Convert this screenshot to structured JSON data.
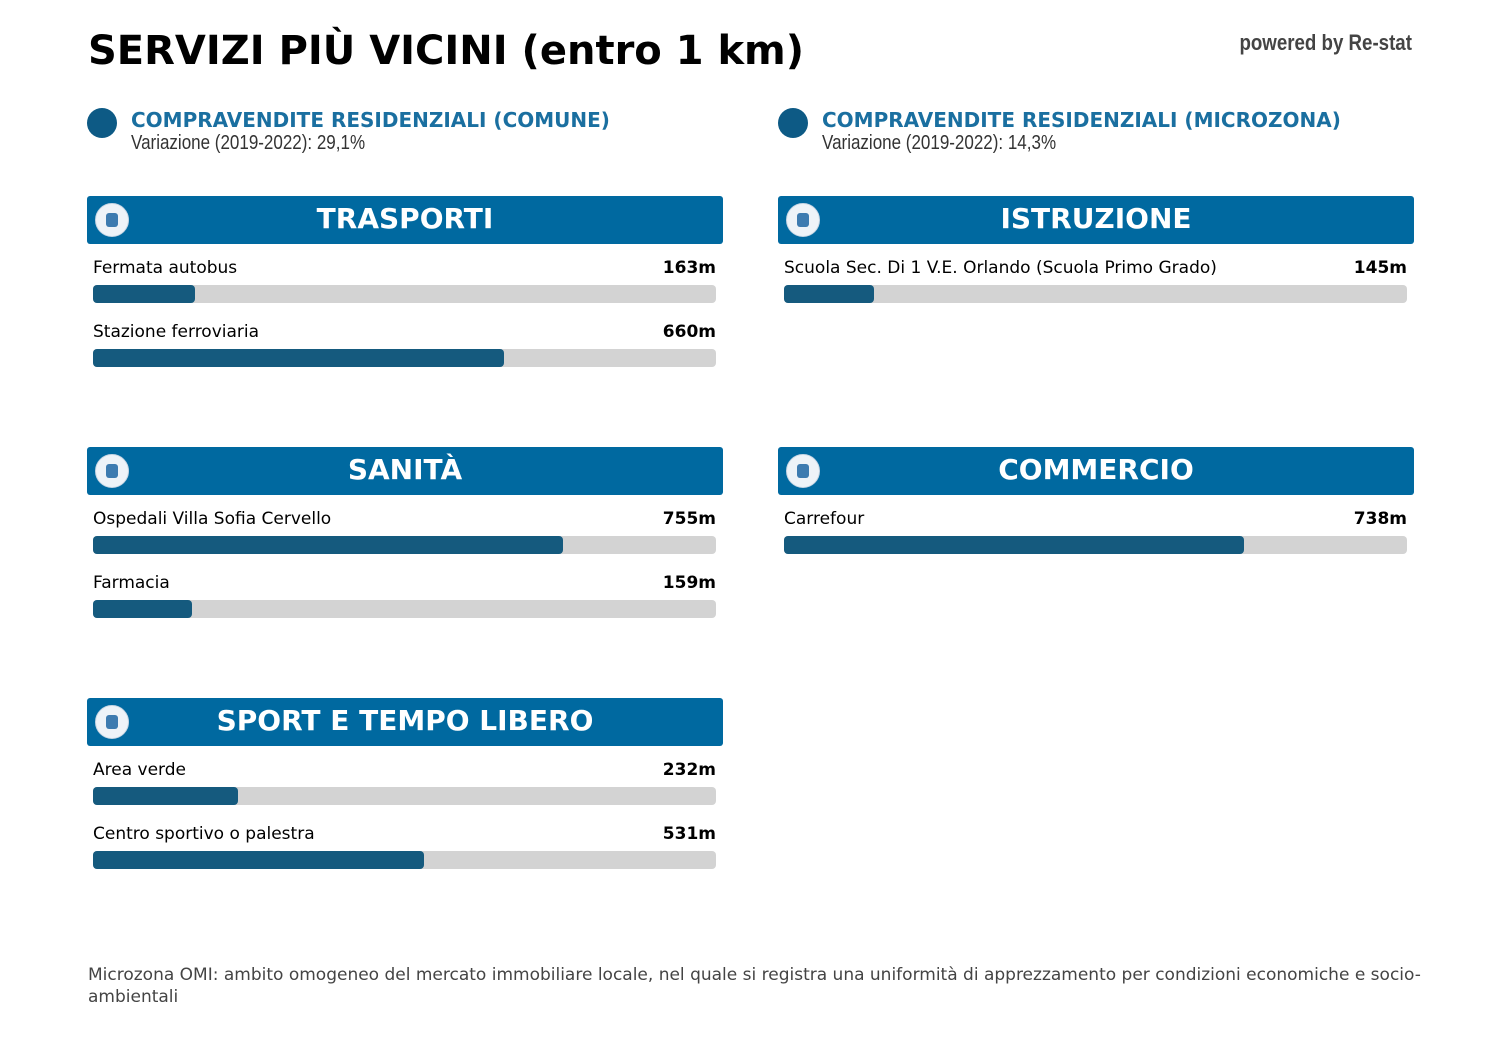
{
  "header": {
    "title": "SERVIZI PIÙ VICINI (entro 1 km)",
    "brand": "powered by Re-stat"
  },
  "stats": [
    {
      "title": "COMPRAVENDITE RESIDENZIALI (COMUNE)",
      "subtitle": "Variazione (2019-2022): 29,1%"
    },
    {
      "title": "COMPRAVENDITE RESIDENZIALI (MICROZONA)",
      "subtitle": "Variazione (2019-2022): 14,3%"
    }
  ],
  "xlim": [
    0,
    1000
  ],
  "sections": [
    {
      "title": "TRASPORTI",
      "items": [
        {
          "name": "Fermata autobus",
          "value": 163,
          "value_label": "163m"
        },
        {
          "name": "Stazione ferroviaria",
          "value": 660,
          "value_label": "660m"
        }
      ]
    },
    {
      "title": "ISTRUZIONE",
      "items": [
        {
          "name": "Scuola Sec. Di 1 V.E. Orlando (Scuola Primo Grado)",
          "value": 145,
          "value_label": "145m"
        }
      ]
    },
    {
      "title": "SANITÀ",
      "items": [
        {
          "name": "Ospedali Villa Sofia Cervello",
          "value": 755,
          "value_label": "755m"
        },
        {
          "name": "Farmacia",
          "value": 159,
          "value_label": "159m"
        }
      ]
    },
    {
      "title": "COMMERCIO",
      "items": [
        {
          "name": "Carrefour",
          "value": 738,
          "value_label": "738m"
        }
      ]
    },
    {
      "title": "SPORT E TEMPO LIBERO",
      "items": [
        {
          "name": "Area verde",
          "value": 232,
          "value_label": "232m"
        },
        {
          "name": "Centro sportivo o palestra",
          "value": 531,
          "value_label": "531m"
        }
      ]
    }
  ],
  "footnote": "Microzona OMI: ambito omogeneo del mercato immobiliare locale, nel quale si registra una uniformità di apprezzamento per condizioni economiche e socio-ambientali"
}
